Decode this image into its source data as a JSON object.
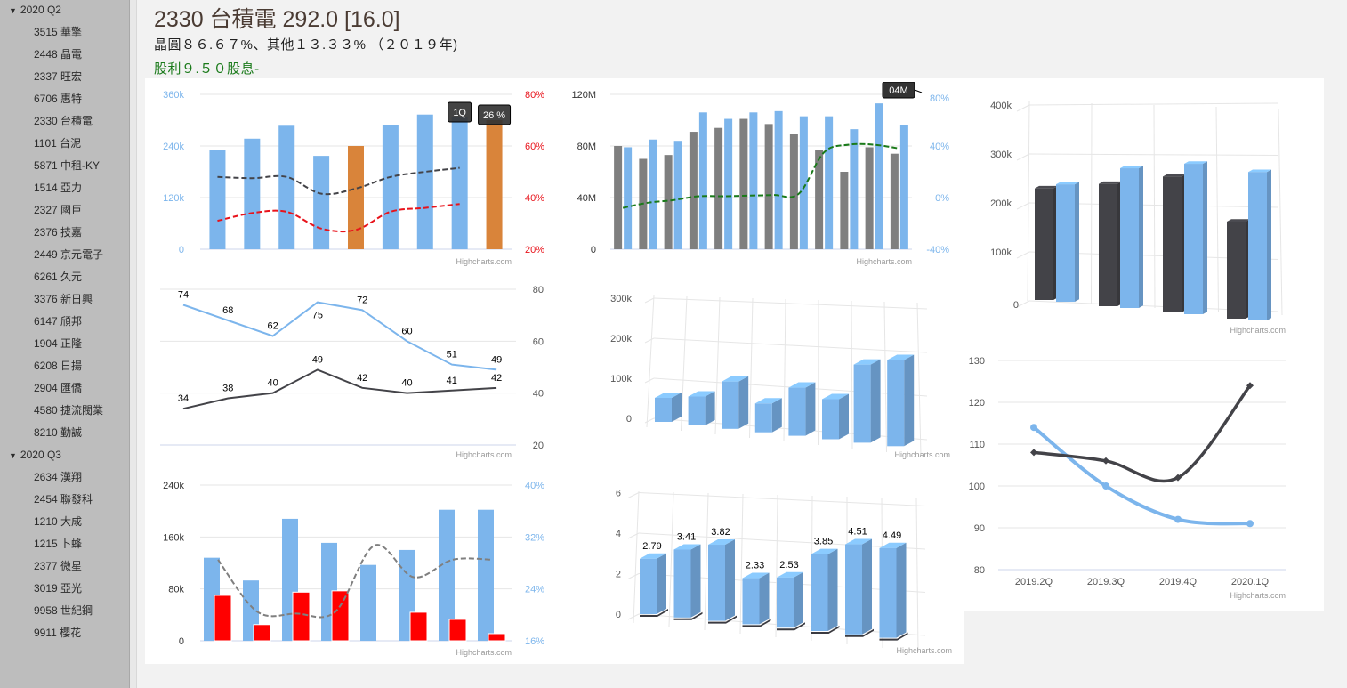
{
  "sidebar": {
    "groups": [
      {
        "label": "2020 Q2",
        "items": [
          "3515 華擎",
          "2448 晶電",
          "2337 旺宏",
          "6706 惠特",
          "2330 台積電",
          "1101 台泥",
          "5871 中租-KY",
          "1514 亞力",
          "2327 國巨",
          "2376 技嘉",
          "2449 京元電子",
          "6261 久元",
          "3376 新日興",
          "6147 頎邦",
          "1904 正隆",
          "6208 日揚",
          "2904 匯僑",
          "4580 捷流閥業",
          "8210 勤誠"
        ]
      },
      {
        "label": "2020 Q3",
        "items": [
          "2634 漢翔",
          "2454 聯發科",
          "1210 大成",
          "1215 卜蜂",
          "2377 微星",
          "3019 亞光",
          "9958 世紀鋼",
          "9911 櫻花"
        ]
      }
    ]
  },
  "header": {
    "title": "2330 台積電 292.0 [16.0]",
    "subtitle": "晶圓８６.６７%、其他１３.３３% （２０１９年)",
    "dividend": "股利９.５０股息-"
  },
  "credit": "Highcharts.com",
  "colors": {
    "blue": "#7cb5ec",
    "orange": "#d9843a",
    "red": "#e8131b",
    "dark": "#434348",
    "gray": "#7f7f7f",
    "green": "#1a7a1a"
  },
  "chart_data": [
    {
      "id": "revenue_margin",
      "type": "bar",
      "left_axis": {
        "ticks": [
          "0",
          "120k",
          "240k",
          "360k"
        ],
        "range": [
          0,
          360000
        ]
      },
      "right_axis": {
        "ticks": [
          "20%",
          "40%",
          "60%",
          "80%"
        ],
        "range": [
          20,
          80
        ]
      },
      "bars": [
        230000,
        257000,
        287000,
        217000,
        240000,
        288000,
        313000,
        308000,
        300000
      ],
      "bar_colors": [
        "blue",
        "blue",
        "blue",
        "blue",
        "orange",
        "blue",
        "blue",
        "blue",
        "orange"
      ],
      "series": [
        {
          "name": "gross-margin",
          "color": "dark",
          "values": [
            48,
            47.5,
            48,
            41.5,
            43.5,
            48,
            50,
            51.5
          ]
        },
        {
          "name": "operating-margin",
          "color": "red",
          "values": [
            31,
            34,
            34.5,
            28,
            27.5,
            34.5,
            36,
            37.5
          ]
        }
      ],
      "tooltips": [
        "1Q",
        "26 %"
      ]
    },
    {
      "id": "monthly_revenue",
      "type": "bar",
      "left_axis": {
        "ticks": [
          "0",
          "40M",
          "80M",
          "120M"
        ],
        "range": [
          0,
          120000000
        ]
      },
      "right_axis": {
        "ticks": [
          "-40%",
          "0%",
          "40%",
          "80%"
        ],
        "range": [
          -40,
          80
        ]
      },
      "series_bars": [
        {
          "name": "prior-year",
          "color": "gray",
          "values": [
            80,
            70,
            73,
            91,
            94,
            101,
            97,
            89,
            77,
            60,
            79,
            74
          ]
        },
        {
          "name": "current-year",
          "color": "blue",
          "values": [
            79,
            85,
            84,
            106,
            101,
            106,
            107,
            103,
            103,
            93,
            113,
            96
          ]
        }
      ],
      "line": {
        "name": "yoy",
        "color": "green",
        "values": [
          -8,
          -4,
          -2,
          1,
          1,
          1.5,
          2,
          3,
          35,
          41,
          41,
          38
        ]
      },
      "tooltip": "04M"
    },
    {
      "id": "quarterly_3d",
      "type": "bar",
      "axis": {
        "ticks": [
          "0",
          "100k",
          "200k",
          "300k",
          "400k"
        ],
        "range": [
          0,
          400000
        ]
      },
      "series": [
        {
          "name": "dark",
          "color": "dark",
          "values": [
            230000,
            252000,
            280000,
            200000
          ]
        },
        {
          "name": "blue",
          "color": "blue",
          "values": [
            242000,
            288000,
            310000,
            306000
          ]
        }
      ]
    },
    {
      "id": "percent_lines",
      "type": "line",
      "axis": {
        "ticks": [
          "20",
          "40",
          "60",
          "80"
        ],
        "range": [
          20,
          80
        ]
      },
      "series": [
        {
          "name": "upper",
          "color": "blue",
          "values": [
            74,
            68,
            62,
            75,
            72,
            60,
            51,
            49
          ]
        },
        {
          "name": "lower",
          "color": "dark",
          "values": [
            34,
            38,
            40,
            49,
            42,
            40,
            41,
            42
          ]
        }
      ]
    },
    {
      "id": "bars_3d_mid",
      "type": "bar",
      "axis": {
        "ticks": [
          "0",
          "100k",
          "200k",
          "300k"
        ],
        "range": [
          0,
          300000
        ]
      },
      "values": [
        60000,
        72000,
        118000,
        72000,
        120000,
        100000,
        195000,
        215000
      ]
    },
    {
      "id": "bars_3d_eps",
      "type": "bar",
      "axis": {
        "ticks": [
          "0",
          "2",
          "4",
          "6"
        ],
        "range": [
          0,
          6
        ]
      },
      "values": [
        2.79,
        3.41,
        3.82,
        2.33,
        2.53,
        3.85,
        4.51,
        4.49
      ],
      "labels": [
        "2.79",
        "3.41",
        "3.82",
        "2.33",
        "2.53",
        "3.85",
        "4.51",
        "4.49"
      ]
    },
    {
      "id": "bottom_combo",
      "type": "bar",
      "left_axis": {
        "ticks": [
          "0",
          "80k",
          "160k",
          "240k"
        ],
        "range": [
          0,
          240000
        ]
      },
      "right_axis": {
        "ticks": [
          "16%",
          "24%",
          "32%",
          "40%"
        ],
        "range": [
          16,
          40
        ]
      },
      "series_bars": [
        {
          "name": "blue",
          "color": "blue",
          "values": [
            128000,
            93000,
            188000,
            151000,
            117000,
            140000,
            202000,
            202000
          ]
        },
        {
          "name": "red",
          "color": "red",
          "values": [
            70000,
            25000,
            75000,
            77000,
            0,
            44000,
            33000,
            11000
          ]
        }
      ],
      "line": {
        "name": "ratio",
        "color": "gray",
        "values": [
          28.5,
          20.5,
          20.2,
          20.5,
          30.7,
          25.8,
          28.5,
          28.5
        ]
      }
    },
    {
      "id": "turnover_days",
      "type": "line",
      "categories": [
        "2019.2Q",
        "2019.3Q",
        "2019.4Q",
        "2020.1Q"
      ],
      "axis": {
        "ticks": [
          "80",
          "90",
          "100",
          "110",
          "120",
          "130"
        ],
        "range": [
          80,
          130
        ]
      },
      "series": [
        {
          "name": "dark",
          "color": "dark",
          "values": [
            108,
            106,
            102,
            124
          ]
        },
        {
          "name": "blue",
          "color": "blue",
          "values": [
            114,
            100,
            92,
            91
          ]
        }
      ]
    }
  ]
}
